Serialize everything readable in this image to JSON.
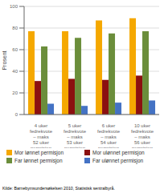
{
  "chart_data": {
    "type": "bar",
    "categories": [
      "4 uker\nfedrekvote\n– maks\n52 uker\npermisjon",
      "5 uker\nfedrekvote\n– maks\n53 uker\npermisjon",
      "6 uker\nfedrekvote\n– maks\n54 uker\npermisjon",
      "10 uker\nfedrekvote\n– maks\n56 uker\npermisjon"
    ],
    "series": [
      {
        "name": "Mor lønnet permisjon",
        "color": "#F5A800",
        "values": [
          77,
          77,
          87,
          89
        ]
      },
      {
        "name": "Mor ulønnet permisjon",
        "color": "#8B1010",
        "values": [
          31,
          33,
          32,
          36
        ]
      },
      {
        "name": "Far lønnet permisjon",
        "color": "#6B8E3B",
        "values": [
          63,
          71,
          75,
          77
        ]
      },
      {
        "name": "Far ulønnet permisjon",
        "color": "#4472C4",
        "values": [
          10,
          8,
          11,
          13
        ]
      }
    ],
    "y_label": "Prosent",
    "ylim": [
      0,
      100
    ],
    "yticks": [
      0,
      20,
      40,
      60,
      80,
      100
    ],
    "grid": true,
    "legend": "bottom",
    "annotations": [
      "Kilde: Barnebymsundersøkelsen 2010, Statistisk sentralbyrå."
    ]
  }
}
